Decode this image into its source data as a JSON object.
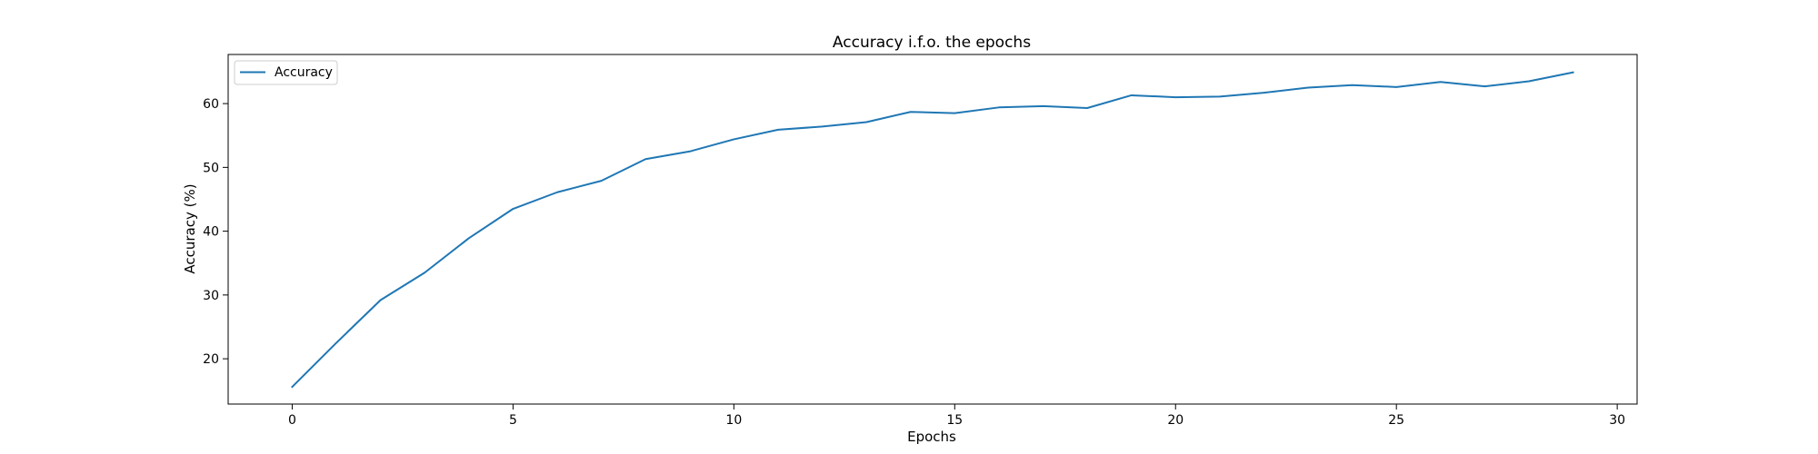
{
  "chart_data": {
    "type": "line",
    "title": "Accuracy i.f.o. the epochs",
    "xlabel": "Epochs",
    "ylabel": "Accuracy (%)",
    "xlim": [
      -1.45,
      30.45
    ],
    "ylim": [
      12.9,
      67.7
    ],
    "x_ticks": [
      0,
      5,
      10,
      15,
      20,
      25,
      30
    ],
    "y_ticks": [
      20,
      30,
      40,
      50,
      60
    ],
    "grid": false,
    "legend_position": "top-left",
    "series": [
      {
        "name": "Accuracy",
        "color": "#1f77b4",
        "x": [
          0,
          1,
          2,
          3,
          4,
          5,
          6,
          7,
          8,
          9,
          10,
          11,
          12,
          13,
          14,
          15,
          16,
          17,
          18,
          19,
          20,
          21,
          22,
          23,
          24,
          25,
          26,
          27,
          28,
          29
        ],
        "values": [
          15.6,
          22.5,
          29.2,
          33.5,
          38.9,
          43.5,
          46.1,
          47.9,
          51.3,
          52.5,
          54.4,
          55.9,
          56.4,
          57.1,
          58.7,
          58.5,
          59.4,
          59.6,
          59.3,
          61.3,
          61.0,
          61.1,
          61.7,
          62.5,
          62.9,
          62.6,
          63.4,
          62.7,
          63.5,
          64.9
        ]
      }
    ]
  }
}
